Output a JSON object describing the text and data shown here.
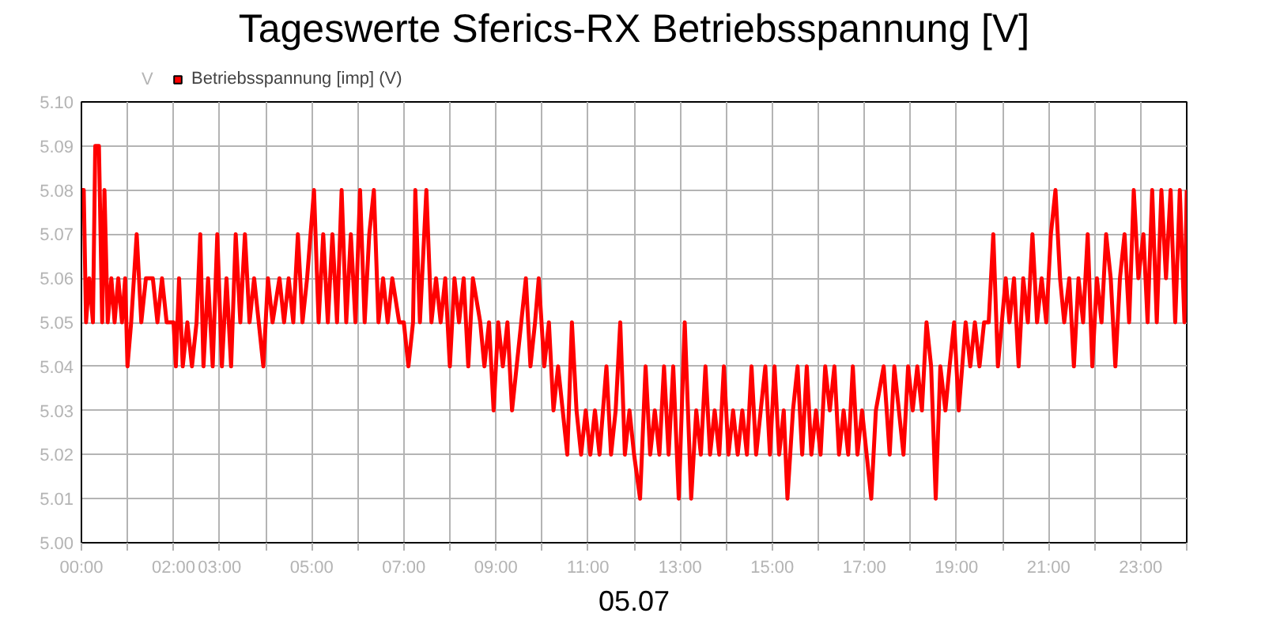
{
  "chart_data": {
    "type": "line",
    "title": "Tageswerte Sferics-RX Betriebsspannung [V]",
    "xlabel": "05.07",
    "ylabel": "V",
    "series": [
      {
        "name": "Betriebsspannung [imp] (V)",
        "color": "#ff0000",
        "x": [
          0.0,
          0.05,
          0.1,
          0.17,
          0.25,
          0.3,
          0.38,
          0.45,
          0.5,
          0.57,
          0.65,
          0.72,
          0.8,
          0.88,
          0.95,
          1.0,
          1.08,
          1.2,
          1.3,
          1.4,
          1.55,
          1.65,
          1.75,
          1.85,
          2.0,
          2.05,
          2.12,
          2.2,
          2.3,
          2.4,
          2.5,
          2.58,
          2.65,
          2.75,
          2.85,
          2.95,
          3.05,
          3.15,
          3.25,
          3.35,
          3.45,
          3.55,
          3.65,
          3.75,
          3.85,
          3.95,
          4.05,
          4.15,
          4.3,
          4.4,
          4.5,
          4.6,
          4.7,
          4.8,
          4.9,
          5.05,
          5.15,
          5.25,
          5.35,
          5.45,
          5.55,
          5.65,
          5.75,
          5.85,
          5.95,
          6.05,
          6.15,
          6.25,
          6.35,
          6.45,
          6.55,
          6.65,
          6.75,
          6.9,
          7.0,
          7.1,
          7.2,
          7.25,
          7.35,
          7.49,
          7.6,
          7.7,
          7.8,
          7.9,
          8.0,
          8.1,
          8.2,
          8.3,
          8.4,
          8.5,
          8.66,
          8.75,
          8.85,
          8.95,
          9.05,
          9.15,
          9.25,
          9.35,
          9.45,
          9.55,
          9.65,
          9.75,
          9.85,
          9.93,
          10.05,
          10.15,
          10.25,
          10.35,
          10.45,
          10.55,
          10.65,
          10.75,
          10.85,
          10.95,
          11.05,
          11.15,
          11.25,
          11.4,
          11.5,
          11.6,
          11.7,
          11.8,
          11.9,
          12.0,
          12.13,
          12.25,
          12.35,
          12.45,
          12.55,
          12.65,
          12.75,
          12.85,
          12.97,
          13.1,
          13.24,
          13.35,
          13.45,
          13.55,
          13.65,
          13.75,
          13.85,
          13.95,
          14.05,
          14.15,
          14.25,
          14.35,
          14.45,
          14.55,
          14.65,
          14.75,
          14.85,
          14.95,
          15.05,
          15.15,
          15.25,
          15.33,
          15.45,
          15.55,
          15.65,
          15.75,
          15.85,
          15.95,
          16.05,
          16.15,
          16.25,
          16.35,
          16.45,
          16.55,
          16.65,
          16.75,
          16.85,
          16.95,
          17.05,
          17.15,
          17.25,
          17.42,
          17.55,
          17.65,
          17.75,
          17.85,
          17.95,
          18.05,
          18.15,
          18.25,
          18.35,
          18.45,
          18.55,
          18.65,
          18.76,
          18.85,
          18.95,
          19.05,
          19.2,
          19.3,
          19.4,
          19.5,
          19.6,
          19.7,
          19.8,
          19.9,
          20.07,
          20.15,
          20.25,
          20.35,
          20.45,
          20.55,
          20.65,
          20.75,
          20.85,
          20.95,
          21.05,
          21.15,
          21.25,
          21.34,
          21.45,
          21.55,
          21.65,
          21.75,
          21.85,
          21.95,
          22.05,
          22.15,
          22.25,
          22.35,
          22.45,
          22.55,
          22.65,
          22.75,
          22.85,
          22.95,
          23.06,
          23.15,
          23.25,
          23.35,
          23.45,
          23.55,
          23.65,
          23.75,
          23.85,
          23.95,
          24.0
        ],
        "values": [
          5.08,
          5.08,
          5.05,
          5.06,
          5.05,
          5.09,
          5.09,
          5.05,
          5.08,
          5.05,
          5.06,
          5.05,
          5.06,
          5.05,
          5.06,
          5.04,
          5.05,
          5.07,
          5.05,
          5.06,
          5.06,
          5.05,
          5.06,
          5.05,
          5.05,
          5.04,
          5.06,
          5.04,
          5.05,
          5.04,
          5.05,
          5.07,
          5.04,
          5.06,
          5.04,
          5.07,
          5.04,
          5.06,
          5.04,
          5.07,
          5.05,
          5.07,
          5.05,
          5.06,
          5.05,
          5.04,
          5.06,
          5.05,
          5.06,
          5.05,
          5.06,
          5.05,
          5.07,
          5.05,
          5.06,
          5.08,
          5.05,
          5.07,
          5.05,
          5.07,
          5.05,
          5.08,
          5.05,
          5.07,
          5.05,
          5.08,
          5.05,
          5.07,
          5.08,
          5.05,
          5.06,
          5.05,
          5.06,
          5.05,
          5.05,
          5.04,
          5.05,
          5.08,
          5.05,
          5.08,
          5.05,
          5.06,
          5.05,
          5.06,
          5.04,
          5.06,
          5.05,
          5.06,
          5.04,
          5.06,
          5.05,
          5.04,
          5.05,
          5.03,
          5.05,
          5.04,
          5.05,
          5.03,
          5.04,
          5.05,
          5.06,
          5.04,
          5.05,
          5.06,
          5.04,
          5.05,
          5.03,
          5.04,
          5.03,
          5.02,
          5.05,
          5.03,
          5.02,
          5.03,
          5.02,
          5.03,
          5.02,
          5.04,
          5.02,
          5.03,
          5.05,
          5.02,
          5.03,
          5.02,
          5.01,
          5.04,
          5.02,
          5.03,
          5.02,
          5.04,
          5.02,
          5.04,
          5.01,
          5.05,
          5.01,
          5.03,
          5.02,
          5.04,
          5.02,
          5.03,
          5.02,
          5.04,
          5.02,
          5.03,
          5.02,
          5.03,
          5.02,
          5.04,
          5.02,
          5.03,
          5.04,
          5.02,
          5.04,
          5.02,
          5.03,
          5.01,
          5.03,
          5.04,
          5.02,
          5.04,
          5.02,
          5.03,
          5.02,
          5.04,
          5.03,
          5.04,
          5.02,
          5.03,
          5.02,
          5.04,
          5.02,
          5.03,
          5.02,
          5.01,
          5.03,
          5.04,
          5.02,
          5.04,
          5.03,
          5.02,
          5.04,
          5.03,
          5.04,
          5.03,
          5.05,
          5.04,
          5.01,
          5.04,
          5.03,
          5.04,
          5.05,
          5.03,
          5.05,
          5.04,
          5.05,
          5.04,
          5.05,
          5.05,
          5.07,
          5.04,
          5.06,
          5.05,
          5.06,
          5.04,
          5.06,
          5.05,
          5.07,
          5.05,
          5.06,
          5.05,
          5.07,
          5.08,
          5.06,
          5.05,
          5.06,
          5.04,
          5.06,
          5.05,
          5.07,
          5.04,
          5.06,
          5.05,
          5.07,
          5.06,
          5.04,
          5.06,
          5.07,
          5.05,
          5.08,
          5.06,
          5.07,
          5.05,
          5.08,
          5.05,
          5.08,
          5.06,
          5.08,
          5.05,
          5.08,
          5.05,
          5.08
        ]
      }
    ],
    "xlim": [
      0,
      24
    ],
    "xticks": [
      {
        "value": 0,
        "label": "00:00"
      },
      {
        "value": 1,
        "label": null
      },
      {
        "value": 2,
        "label": "02:00"
      },
      {
        "value": 3,
        "label": "03:00"
      },
      {
        "value": 4,
        "label": null
      },
      {
        "value": 5,
        "label": "05:00"
      },
      {
        "value": 6,
        "label": null
      },
      {
        "value": 7,
        "label": "07:00"
      },
      {
        "value": 8,
        "label": null
      },
      {
        "value": 9,
        "label": "09:00"
      },
      {
        "value": 10,
        "label": null
      },
      {
        "value": 11,
        "label": "11:00"
      },
      {
        "value": 12,
        "label": null
      },
      {
        "value": 13,
        "label": "13:00"
      },
      {
        "value": 14,
        "label": null
      },
      {
        "value": 15,
        "label": "15:00"
      },
      {
        "value": 16,
        "label": null
      },
      {
        "value": 17,
        "label": "17:00"
      },
      {
        "value": 18,
        "label": null
      },
      {
        "value": 19,
        "label": "19:00"
      },
      {
        "value": 20,
        "label": null
      },
      {
        "value": 21,
        "label": "21:00"
      },
      {
        "value": 22,
        "label": null
      },
      {
        "value": 23,
        "label": "23:00"
      },
      {
        "value": 24,
        "label": null
      }
    ],
    "ylim": [
      5.0,
      5.1
    ],
    "yticks": [
      {
        "value": 5.0,
        "label": "5.00"
      },
      {
        "value": 5.01,
        "label": "5.01"
      },
      {
        "value": 5.02,
        "label": "5.02"
      },
      {
        "value": 5.03,
        "label": "5.03"
      },
      {
        "value": 5.04,
        "label": "5.04"
      },
      {
        "value": 5.05,
        "label": "5.05"
      },
      {
        "value": 5.06,
        "label": "5.06"
      },
      {
        "value": 5.07,
        "label": "5.07"
      },
      {
        "value": 5.08,
        "label": "5.08"
      },
      {
        "value": 5.09,
        "label": "5.09"
      },
      {
        "value": 5.1,
        "label": "5.10"
      }
    ],
    "grid": true,
    "legend": "top left",
    "marker": "none",
    "line_style": "solid"
  }
}
